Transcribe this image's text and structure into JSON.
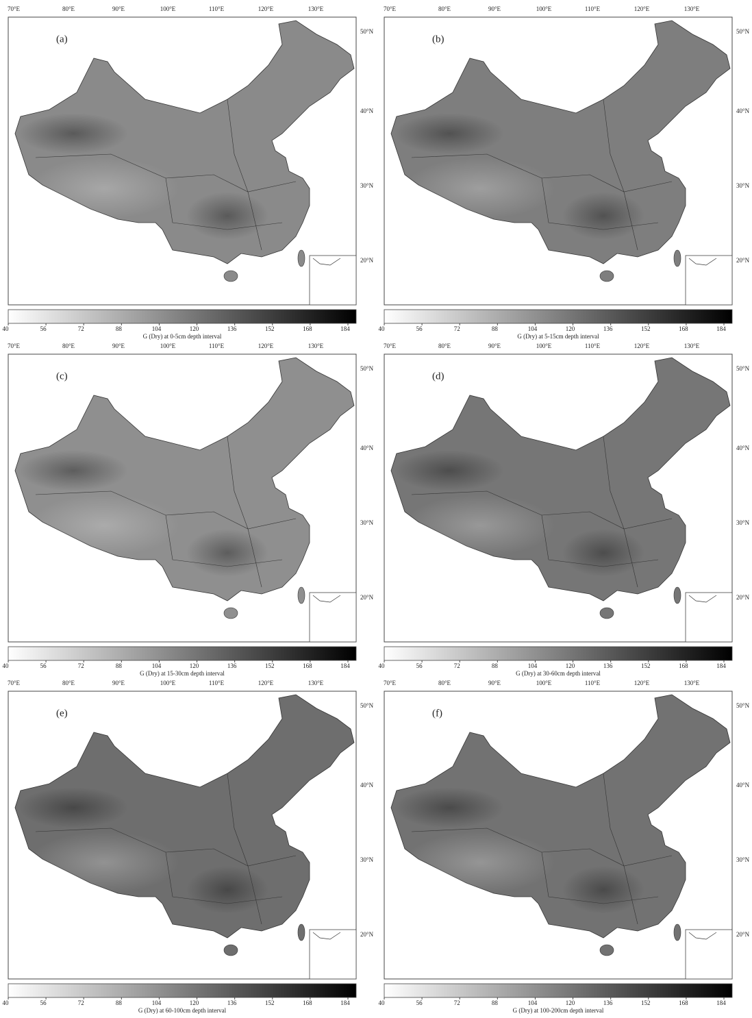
{
  "panels": [
    {
      "label": "(a)",
      "caption": "G (Dry) at 0-5cm depth interval"
    },
    {
      "label": "(b)",
      "caption": "G (Dry) at 5-15cm depth interval"
    },
    {
      "label": "(c)",
      "caption": "G (Dry) at 15-30cm depth interval"
    },
    {
      "label": "(d)",
      "caption": "G (Dry) at 30-60cm depth interval"
    },
    {
      "label": "(e)",
      "caption": "G (Dry) at 60-100cm depth interval"
    },
    {
      "label": "(f)",
      "caption": "G (Dry) at 100-200cm depth interval"
    }
  ],
  "longitude_labels": [
    "70°E",
    "80°E",
    "90°E",
    "100°E",
    "110°E",
    "120°E",
    "130°E"
  ],
  "latitude_labels": [
    "50°N",
    "40°N",
    "30°N",
    "20°N"
  ],
  "colorbar": {
    "ticks": [
      40,
      56,
      72,
      88,
      104,
      120,
      136,
      152,
      168,
      184
    ]
  }
}
